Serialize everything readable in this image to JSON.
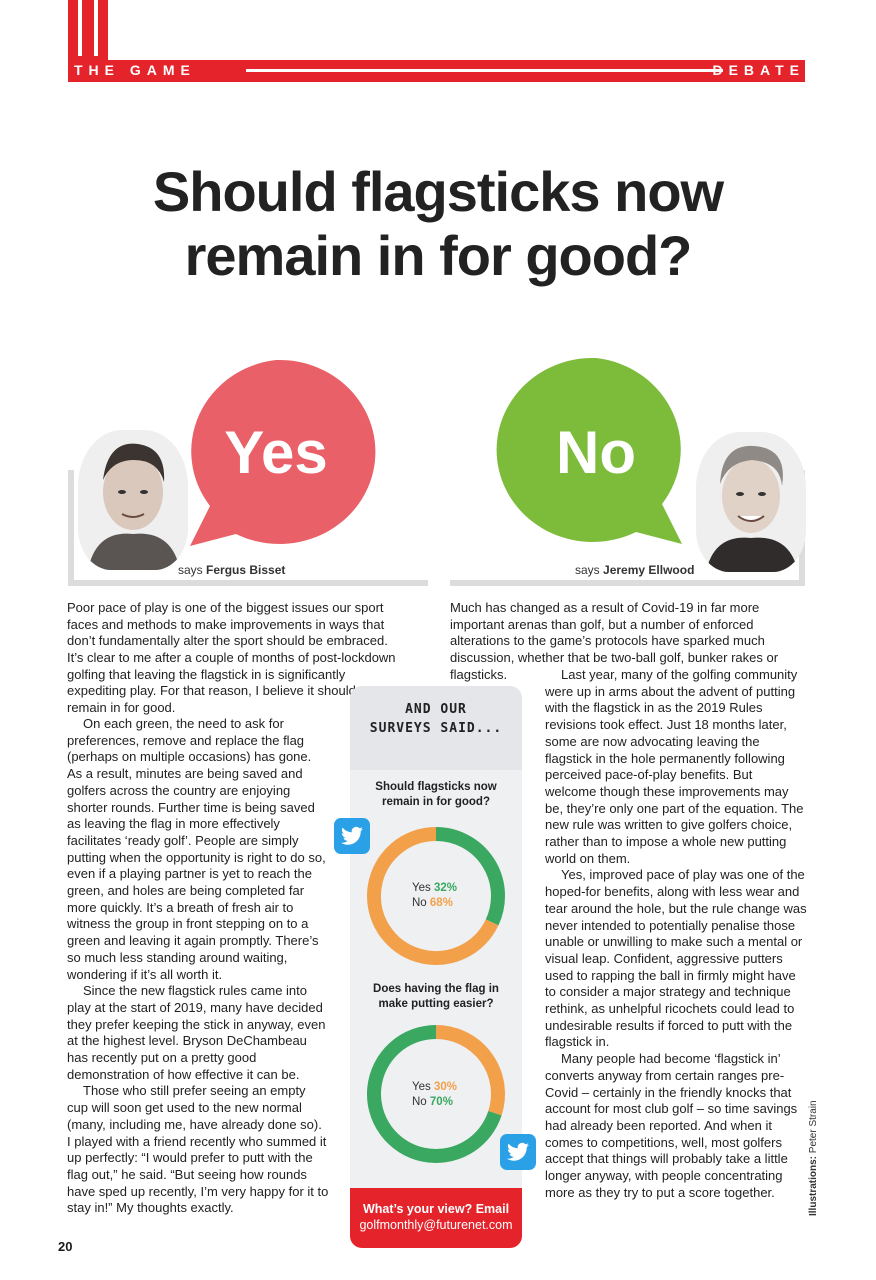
{
  "header": {
    "left": "THE GAME",
    "right": "DEBATE"
  },
  "title": {
    "line1": "Should flagsticks now",
    "line2": "remain in for good?"
  },
  "yes": {
    "word": "Yes",
    "says": "says",
    "name": "Fergus Bisset",
    "color": "#ea6068"
  },
  "no": {
    "word": "No",
    "says": "says",
    "name": "Jeremy Ellwood",
    "color": "#7dbb3a"
  },
  "left_column": [
    "Poor pace of play is one of the biggest issues our sport faces and methods to make improvements in ways that don’t fundamentally alter the sport should be embraced.",
    "It’s clear to me after a couple of months of post-lockdown golfing that leaving the flagstick in is significantly expediting play. For that reason, I believe it should now remain in for good.",
    "On each green, the need to ask for preferences, remove and replace the flag (perhaps on multiple occasions) has gone. As a result, minutes are being saved and golfers across the country are enjoying shorter rounds. Further time is being saved as leaving the flag in more effectively facilitates ‘ready golf’. People are simply putting when the opportunity is right to do so, even if a playing partner is yet to reach the green, and holes are being completed far more quickly. It’s a breath of fresh air to witness the group in front stepping on to a green and leaving it again promptly. There’s so much less standing around waiting, wondering if it’s all worth it.",
    "Since the new flagstick rules came into play at the start of 2019, many have decided they prefer keeping the stick in anyway, even at the highest level. Bryson DeChambeau has recently put on a pretty good demonstration of how effective it can be.",
    "Those who still prefer seeing an empty cup will soon get used to the new normal (many, including me, have already done so). I played with a friend recently who summed it up perfectly: “I would prefer to putt with the flag out,” he said. “But seeing how rounds have sped up recently, I’m very happy for it to stay in!” My thoughts exactly."
  ],
  "right_intro": "Much has changed as a result of Covid-19 in far more important arenas than golf, but a number of enforced alterations to the game’s protocols have sparked much discussion, whether that be two-ball golf, bunker rakes or flagsticks.",
  "right_column": [
    "Last year, many of the golfing community were up in arms about the advent of putting with the flagstick in as the 2019 Rules revisions took effect. Just 18 months later, some are now advocating leaving the flagstick in the hole permanently following perceived pace-of-play benefits. But welcome though these improvements may be, they’re only one part of the equation. The new rule was written to give golfers choice, rather than to impose a whole new putting world on them.",
    "Yes, improved pace of play was one of the hoped-for benefits, along with less wear and tear around the hole, but the rule change was never intended to potentially penalise those unable or unwilling to make such a mental or visual leap. Confident, aggressive putters used to rapping the ball in firmly might have to consider a major strategy and technique rethink, as unhelpful ricochets could lead to undesirable results if forced to putt with the flagstick in.",
    "Many people had become ‘flagstick in’ converts anyway from certain ranges pre-Covid – certainly in the friendly knocks that account for most club golf – so time savings had already been reported. And when it comes to competitions, well, most golfers accept that things will probably take a little longer anyway, with people concentrating more as they try to put a score together."
  ],
  "survey": {
    "heading1": "AND OUR",
    "heading2": "SURVEYS SAID...",
    "charts": [
      {
        "question": "Should flagsticks now remain in for good?",
        "yes_label": "Yes",
        "yes_value": "32%",
        "no_label": "No",
        "no_value": "68%"
      },
      {
        "question": "Does having the flag in make putting easier?",
        "yes_label": "Yes",
        "yes_value": "30%",
        "no_label": "No",
        "no_value": "70%"
      }
    ],
    "cta_line1": "What’s your view? Email",
    "cta_line2": "golfmonthly@futurenet.com",
    "green": "#3aa860",
    "orange": "#f3a04b"
  },
  "chart_data": [
    {
      "type": "pie",
      "title": "Should flagsticks now remain in for good?",
      "categories": [
        "Yes",
        "No"
      ],
      "values": [
        32,
        68
      ]
    },
    {
      "type": "pie",
      "title": "Does having the flag in make putting easier?",
      "categories": [
        "Yes",
        "No"
      ],
      "values": [
        30,
        70
      ]
    }
  ],
  "footer": {
    "page": "20",
    "credit_label": "Illustrations:",
    "credit_name": "Peter Strain"
  }
}
